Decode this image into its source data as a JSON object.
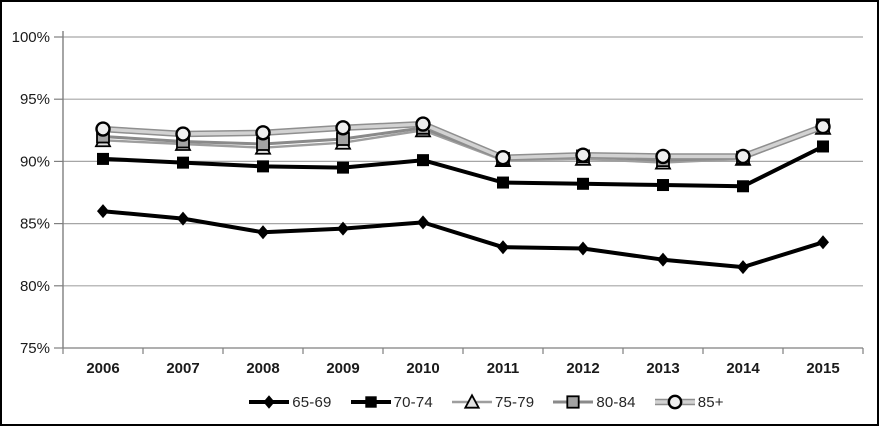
{
  "chart_data": {
    "type": "line",
    "title": "",
    "categories": [
      "2006",
      "2007",
      "2008",
      "2009",
      "2010",
      "2011",
      "2012",
      "2013",
      "2014",
      "2015"
    ],
    "series": [
      {
        "name": "65-69",
        "values": [
          86.0,
          85.4,
          84.3,
          84.6,
          85.1,
          83.1,
          83.0,
          82.1,
          81.5,
          83.5
        ],
        "line_color": "#000000",
        "line_edge_color": null,
        "line_width": 4,
        "marker": "diamond",
        "marker_fill": "#000000",
        "marker_stroke": "none",
        "marker_size": 12
      },
      {
        "name": "70-74",
        "values": [
          90.2,
          89.9,
          89.6,
          89.5,
          90.1,
          88.3,
          88.2,
          88.1,
          88.0,
          91.2
        ],
        "line_color": "#000000",
        "line_edge_color": null,
        "line_width": 4,
        "marker": "square",
        "marker_fill": "#000000",
        "marker_stroke": "none",
        "marker_size": 12
      },
      {
        "name": "75-79",
        "values": [
          91.7,
          91.4,
          91.1,
          91.5,
          92.5,
          90.1,
          90.2,
          89.9,
          90.2,
          92.7
        ],
        "line_color": "#9e9e9e",
        "line_edge_color": null,
        "line_width": 2.4,
        "marker": "triangle",
        "marker_fill": "#e0e0e0",
        "marker_stroke": "#000000",
        "marker_size": 12
      },
      {
        "name": "80-84",
        "values": [
          92.0,
          91.6,
          91.4,
          91.8,
          92.7,
          90.2,
          90.4,
          90.1,
          90.3,
          92.9
        ],
        "line_color": "#8a8a8a",
        "line_edge_color": null,
        "line_width": 3,
        "marker": "square",
        "marker_fill": "#a3a3a3",
        "marker_stroke": "#000000",
        "marker_size": 12
      },
      {
        "name": "85+",
        "values": [
          92.6,
          92.2,
          92.3,
          92.7,
          93.0,
          90.3,
          90.5,
          90.4,
          90.4,
          92.8
        ],
        "line_color": "#d2d2d2",
        "line_edge_color": "#8f8f8f",
        "line_width": 3.4,
        "marker": "circle",
        "marker_fill": "#efefef",
        "marker_stroke": "#000000",
        "marker_size": 13
      }
    ],
    "y_axis": {
      "min": 75,
      "max": 100,
      "step": 5,
      "tick_labels": [
        "100%",
        "95%",
        "90%",
        "85%",
        "80%",
        "75%"
      ],
      "suffix": "%"
    },
    "x_axis": {
      "label": ""
    },
    "legend": {
      "position": "bottom",
      "labels": [
        "65-69",
        "70-74",
        "75-79",
        "80-84",
        "85+"
      ]
    },
    "grid": true,
    "colors": {
      "grid": "#a6a6a6",
      "axis": "#7f7f7f",
      "tick_text": "#1a1a1a",
      "legend_text": "#262626",
      "background": "#ffffff",
      "border": "#000000"
    }
  }
}
